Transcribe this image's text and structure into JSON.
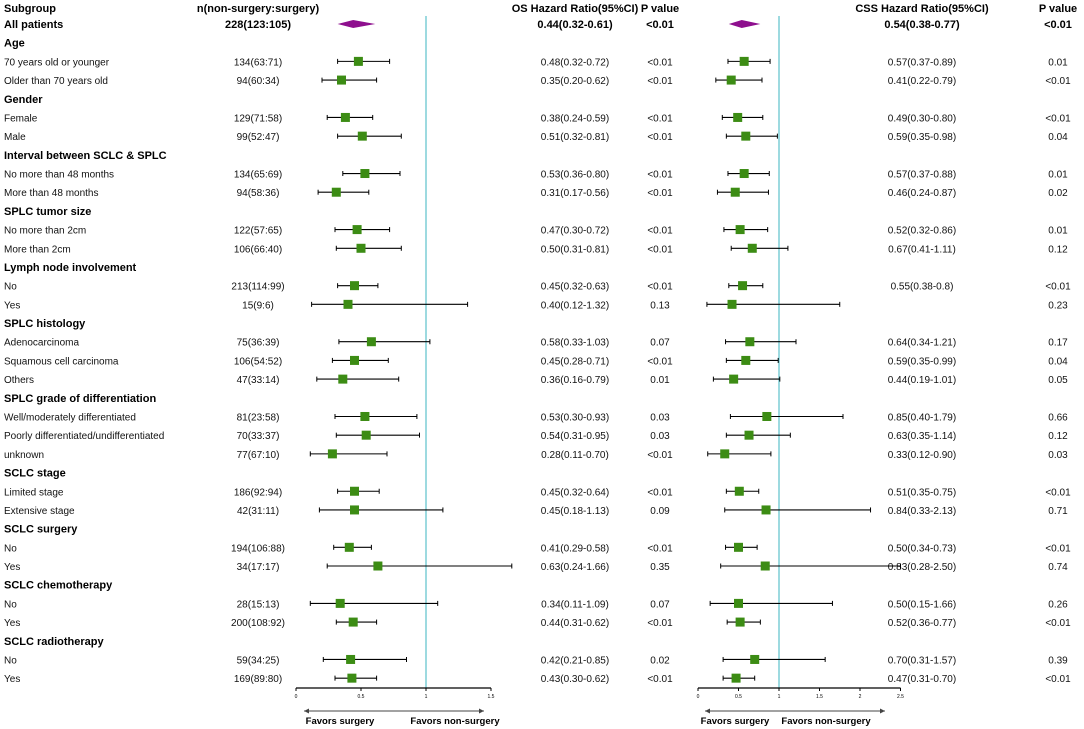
{
  "header": {
    "subgroup": "Subgroup",
    "n": "n(non-surgery:surgery)",
    "os_hr": "OS Hazard Ratio(95%CI)",
    "os_p": "P value",
    "css_hr": "CSS Hazard Ratio(95%CI)",
    "css_p": "P value"
  },
  "colors": {
    "marker": "#3c8c14",
    "diamond": "#8e0f8e",
    "refline": "#5cc2cc",
    "line": "#000000"
  },
  "chart_data": {
    "type": "forest",
    "panels": [
      {
        "name": "OS",
        "xlim": [
          0,
          1.5
        ],
        "ticks": [
          "0",
          "0.5",
          "1",
          "1.5"
        ],
        "tick_values": [
          0,
          0.5,
          1,
          1.5
        ],
        "reference": 1,
        "left_label": "Favors surgery",
        "right_label": "Favors non-surgery"
      },
      {
        "name": "CSS",
        "xlim": [
          0,
          2.5
        ],
        "ticks": [
          "0",
          "0.5",
          "1",
          "1.5",
          "2",
          "2.5"
        ],
        "tick_values": [
          0,
          0.5,
          1,
          1.5,
          2,
          2.5
        ],
        "reference": 1,
        "left_label": "Favors surgery",
        "right_label": "Favors non-surgery"
      }
    ],
    "rows": [
      {
        "type": "overall",
        "label": "All patients",
        "n": "228(123:105)",
        "os": [
          0.44,
          0.32,
          0.61
        ],
        "os_text": "0.44(0.32-0.61)",
        "os_p": "<0.01",
        "css": [
          0.54,
          0.38,
          0.77
        ],
        "css_text": "0.54(0.38-0.77)",
        "css_p": "<0.01"
      },
      {
        "type": "header",
        "label": "Age"
      },
      {
        "label": "70 years old or younger",
        "n": "134(63:71)",
        "os": [
          0.48,
          0.32,
          0.72
        ],
        "os_text": "0.48(0.32-0.72)",
        "os_p": "<0.01",
        "css": [
          0.57,
          0.37,
          0.89
        ],
        "css_text": "0.57(0.37-0.89)",
        "css_p": "0.01"
      },
      {
        "label": "Older than 70 years old",
        "n": "94(60:34)",
        "os": [
          0.35,
          0.2,
          0.62
        ],
        "os_text": "0.35(0.20-0.62)",
        "os_p": "<0.01",
        "css": [
          0.41,
          0.22,
          0.79
        ],
        "css_text": "0.41(0.22-0.79)",
        "css_p": "<0.01"
      },
      {
        "type": "header",
        "label": "Gender"
      },
      {
        "label": "Female",
        "n": "129(71:58)",
        "os": [
          0.38,
          0.24,
          0.59
        ],
        "os_text": "0.38(0.24-0.59)",
        "os_p": "<0.01",
        "css": [
          0.49,
          0.3,
          0.8
        ],
        "css_text": "0.49(0.30-0.80)",
        "css_p": "<0.01"
      },
      {
        "label": "Male",
        "n": "99(52:47)",
        "os": [
          0.51,
          0.32,
          0.81
        ],
        "os_text": "0.51(0.32-0.81)",
        "os_p": "<0.01",
        "css": [
          0.59,
          0.35,
          0.98
        ],
        "css_text": "0.59(0.35-0.98)",
        "css_p": "0.04"
      },
      {
        "type": "header",
        "label": "Interval between SCLC & SPLC"
      },
      {
        "label": "No more than 48 months",
        "n": "134(65:69)",
        "os": [
          0.53,
          0.36,
          0.8
        ],
        "os_text": "0.53(0.36-0.80)",
        "os_p": "<0.01",
        "css": [
          0.57,
          0.37,
          0.88
        ],
        "css_text": "0.57(0.37-0.88)",
        "css_p": "0.01"
      },
      {
        "label": "More than 48 months",
        "n": "94(58:36)",
        "os": [
          0.31,
          0.17,
          0.56
        ],
        "os_text": "0.31(0.17-0.56)",
        "os_p": "<0.01",
        "css": [
          0.46,
          0.24,
          0.87
        ],
        "css_text": "0.46(0.24-0.87)",
        "css_p": "0.02"
      },
      {
        "type": "header",
        "label": "SPLC tumor size"
      },
      {
        "label": "No more than 2cm",
        "n": "122(57:65)",
        "os": [
          0.47,
          0.3,
          0.72
        ],
        "os_text": "0.47(0.30-0.72)",
        "os_p": "<0.01",
        "css": [
          0.52,
          0.32,
          0.86
        ],
        "css_text": "0.52(0.32-0.86)",
        "css_p": "0.01"
      },
      {
        "label": "More than 2cm",
        "n": "106(66:40)",
        "os": [
          0.5,
          0.31,
          0.81
        ],
        "os_text": "0.50(0.31-0.81)",
        "os_p": "<0.01",
        "css": [
          0.67,
          0.41,
          1.11
        ],
        "css_text": "0.67(0.41-1.11)",
        "css_p": "0.12"
      },
      {
        "type": "header",
        "label": "Lymph node involvement"
      },
      {
        "label": "No",
        "n": "213(114:99)",
        "os": [
          0.45,
          0.32,
          0.63
        ],
        "os_text": "0.45(0.32-0.63)",
        "os_p": "<0.01",
        "css": [
          0.55,
          0.38,
          0.8
        ],
        "css_text": "0.55(0.38-0.8)",
        "css_p": "<0.01"
      },
      {
        "label": "Yes",
        "n": "15(9:6)",
        "os": [
          0.4,
          0.12,
          1.32
        ],
        "os_text": "0.40(0.12-1.32)",
        "os_p": "0.13",
        "css": [
          0.42,
          0.11,
          1.75
        ],
        "css_p": "0.23"
      },
      {
        "type": "header",
        "label": "SPLC histology"
      },
      {
        "label": "Adenocarcinoma",
        "n": "75(36:39)",
        "os": [
          0.58,
          0.33,
          1.03
        ],
        "os_text": "0.58(0.33-1.03)",
        "os_p": "0.07",
        "css": [
          0.64,
          0.34,
          1.21
        ],
        "css_text": "0.64(0.34-1.21)",
        "css_p": "0.17"
      },
      {
        "label": "Squamous cell carcinoma",
        "n": "106(54:52)",
        "os": [
          0.45,
          0.28,
          0.71
        ],
        "os_text": "0.45(0.28-0.71)",
        "os_p": "<0.01",
        "css": [
          0.59,
          0.35,
          0.99
        ],
        "css_text": "0.59(0.35-0.99)",
        "css_p": "0.04"
      },
      {
        "label": "Others",
        "n": "47(33:14)",
        "os": [
          0.36,
          0.16,
          0.79
        ],
        "os_text": "0.36(0.16-0.79)",
        "os_p": "0.01",
        "css": [
          0.44,
          0.19,
          1.01
        ],
        "css_text": "0.44(0.19-1.01)",
        "css_p": "0.05"
      },
      {
        "type": "header",
        "label": "SPLC grade of differentiation"
      },
      {
        "label": "Well/moderately differentiated",
        "n": "81(23:58)",
        "os": [
          0.53,
          0.3,
          0.93
        ],
        "os_text": "0.53(0.30-0.93)",
        "os_p": "0.03",
        "css": [
          0.85,
          0.4,
          1.79
        ],
        "css_text": "0.85(0.40-1.79)",
        "css_p": "0.66"
      },
      {
        "label": "Poorly differentiated/undifferentiated",
        "n": "70(33:37)",
        "os": [
          0.54,
          0.31,
          0.95
        ],
        "os_text": "0.54(0.31-0.95)",
        "os_p": "0.03",
        "css": [
          0.63,
          0.35,
          1.14
        ],
        "css_text": "0.63(0.35-1.14)",
        "css_p": "0.12"
      },
      {
        "label": "unknown",
        "n": "77(67:10)",
        "os": [
          0.28,
          0.11,
          0.7
        ],
        "os_text": "0.28(0.11-0.70)",
        "os_p": "<0.01",
        "css": [
          0.33,
          0.12,
          0.9
        ],
        "css_text": "0.33(0.12-0.90)",
        "css_p": "0.03"
      },
      {
        "type": "header",
        "label": "SCLC stage"
      },
      {
        "label": "Limited stage",
        "n": "186(92:94)",
        "os": [
          0.45,
          0.32,
          0.64
        ],
        "os_text": "0.45(0.32-0.64)",
        "os_p": "<0.01",
        "css": [
          0.51,
          0.35,
          0.75
        ],
        "css_text": "0.51(0.35-0.75)",
        "css_p": "<0.01"
      },
      {
        "label": "Extensive stage",
        "n": "42(31:11)",
        "os": [
          0.45,
          0.18,
          1.13
        ],
        "os_text": "0.45(0.18-1.13)",
        "os_p": "0.09",
        "css": [
          0.84,
          0.33,
          2.13
        ],
        "css_text": "0.84(0.33-2.13)",
        "css_p": "0.71"
      },
      {
        "type": "header",
        "label": "SCLC surgery"
      },
      {
        "label": "No",
        "n": "194(106:88)",
        "os": [
          0.41,
          0.29,
          0.58
        ],
        "os_text": "0.41(0.29-0.58)",
        "os_p": "<0.01",
        "css": [
          0.5,
          0.34,
          0.73
        ],
        "css_text": "0.50(0.34-0.73)",
        "css_p": "<0.01"
      },
      {
        "label": "Yes",
        "n": "34(17:17)",
        "os": [
          0.63,
          0.24,
          1.66
        ],
        "os_text": "0.63(0.24-1.66)",
        "os_p": "0.35",
        "css": [
          0.83,
          0.28,
          2.5
        ],
        "css_text": "0.83(0.28-2.50)",
        "css_p": "0.74"
      },
      {
        "type": "header",
        "label": "SCLC chemotherapy"
      },
      {
        "label": "No",
        "n": "28(15:13)",
        "os": [
          0.34,
          0.11,
          1.09
        ],
        "os_text": "0.34(0.11-1.09)",
        "os_p": "0.07",
        "css": [
          0.5,
          0.15,
          1.66
        ],
        "css_text": "0.50(0.15-1.66)",
        "css_p": "0.26"
      },
      {
        "label": "Yes",
        "n": "200(108:92)",
        "os": [
          0.44,
          0.31,
          0.62
        ],
        "os_text": "0.44(0.31-0.62)",
        "os_p": "<0.01",
        "css": [
          0.52,
          0.36,
          0.77
        ],
        "css_text": "0.52(0.36-0.77)",
        "css_p": "<0.01"
      },
      {
        "type": "header",
        "label": "SCLC radiotherapy"
      },
      {
        "label": "No",
        "n": "59(34:25)",
        "os": [
          0.42,
          0.21,
          0.85
        ],
        "os_text": "0.42(0.21-0.85)",
        "os_p": "0.02",
        "css": [
          0.7,
          0.31,
          1.57
        ],
        "css_text": "0.70(0.31-1.57)",
        "css_p": "0.39"
      },
      {
        "label": "Yes",
        "n": "169(89:80)",
        "os": [
          0.43,
          0.3,
          0.62
        ],
        "os_text": "0.43(0.30-0.62)",
        "os_p": "<0.01",
        "css": [
          0.47,
          0.31,
          0.7
        ],
        "css_text": "0.47(0.31-0.70)",
        "css_p": "<0.01"
      }
    ]
  }
}
